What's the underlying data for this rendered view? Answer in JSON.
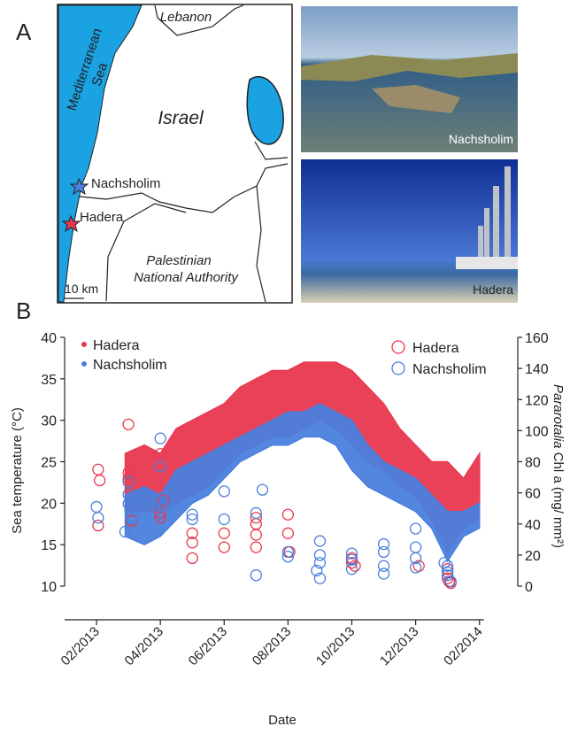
{
  "figure": {
    "panel_a": {
      "label": "A",
      "map": {
        "lebanon": "Lebanon",
        "sea_line1": "Mediterranean",
        "sea_line2": "Sea",
        "country": "Israel",
        "site1": "Nachsholim",
        "site2": "Hadera",
        "pa_line1": "Palestinian",
        "pa_line2": "National Authority",
        "scale": "10 km"
      },
      "photos": [
        "Nachsholim",
        "Hadera"
      ]
    },
    "panel_b": {
      "label": "B"
    }
  },
  "chart_data": {
    "type": "band-scatter",
    "xlabel": "Date",
    "ylabel": "Sea temperature (°C)",
    "y2label_italic": "Pararotalia",
    "y2label": "Chl a (mg/ mm²)",
    "xlim": [
      -1,
      13.2
    ],
    "xticks": [
      {
        "value": 0,
        "label": "02/2013"
      },
      {
        "value": 2,
        "label": "04/2013"
      },
      {
        "value": 4,
        "label": "06/2013"
      },
      {
        "value": 6,
        "label": "08/2013"
      },
      {
        "value": 8,
        "label": "10/2013"
      },
      {
        "value": 10,
        "label": "12/2013"
      },
      {
        "value": 12,
        "label": "02/2014"
      }
    ],
    "ylim": [
      10,
      40
    ],
    "yticks": [
      10,
      15,
      20,
      25,
      30,
      35,
      40
    ],
    "y2lim": [
      0,
      160
    ],
    "y2ticks": [
      0,
      20,
      40,
      60,
      80,
      100,
      120,
      140,
      160
    ],
    "series": [
      {
        "name": "Hadera",
        "color": "#e8384f",
        "kind": "band",
        "legend": "left",
        "x": [
          0.9,
          1.5,
          2,
          2.5,
          3,
          3.5,
          4,
          4.5,
          5,
          5.5,
          6,
          6.5,
          7,
          7.5,
          8,
          8.5,
          9,
          9.5,
          10,
          10.5,
          11,
          11.5,
          12
        ],
        "values": [
          26,
          27,
          26,
          29,
          30,
          31,
          32,
          34,
          35,
          36,
          36,
          37,
          37,
          37,
          36,
          34,
          32,
          29,
          27,
          25,
          25,
          23,
          26
        ],
        "low": [
          19,
          19,
          19,
          20,
          21,
          22,
          24,
          26,
          27,
          28,
          28,
          29,
          30,
          29,
          27,
          25,
          24,
          22,
          21,
          18,
          14,
          17,
          18
        ]
      },
      {
        "name": "Nachsholim",
        "color": "#4a7fdc",
        "kind": "band",
        "legend": "left",
        "x": [
          0.9,
          1.5,
          2,
          2.5,
          3,
          3.5,
          4,
          4.5,
          5,
          5.5,
          6,
          6.5,
          7,
          7.5,
          8,
          8.5,
          9,
          9.5,
          10,
          10.5,
          11,
          11.5,
          12
        ],
        "values": [
          21,
          22,
          21,
          24,
          25,
          26,
          27,
          28,
          29,
          30,
          31,
          31,
          32,
          31,
          30,
          27,
          25,
          24,
          23,
          21,
          19,
          19,
          20
        ],
        "low": [
          16,
          15,
          16,
          18,
          20,
          21,
          23,
          25,
          26,
          27,
          27,
          28,
          28,
          27,
          24,
          22,
          21,
          20,
          19,
          17,
          13,
          16,
          17
        ]
      },
      {
        "name": "Hadera",
        "color": "#e8384f",
        "kind": "scatter",
        "axis": "y2",
        "legend": "right",
        "x": [
          0.05,
          0.1,
          0.05,
          1.0,
          1.0,
          1.0,
          1.1,
          2.0,
          2.0,
          2.0,
          2.1,
          3.0,
          3.0,
          3.0,
          4.0,
          4.0,
          5.0,
          5.0,
          5.0,
          5.0,
          6.0,
          6.0,
          6.05,
          8.0,
          8.0,
          8.1,
          10.1,
          11.0,
          11.0,
          11.1,
          11.05
        ],
        "values": [
          75,
          68,
          39,
          104,
          73,
          69,
          42,
          85,
          47,
          44,
          55,
          34,
          28,
          18,
          34,
          25,
          44,
          40,
          33,
          25,
          46,
          34,
          22,
          18,
          15,
          13,
          13,
          11,
          5,
          2,
          3
        ]
      },
      {
        "name": "Nachsholim",
        "color": "#4a7fdc",
        "kind": "scatter",
        "axis": "y2",
        "legend": "right",
        "x": [
          0,
          0.05,
          0.9,
          1.0,
          1.0,
          1.1,
          1.0,
          2.0,
          2.0,
          2.0,
          2.1,
          3.0,
          3.0,
          4.0,
          4.0,
          5.0,
          5.2,
          5.0,
          6.0,
          6.0,
          7.0,
          7.0,
          7.0,
          6.9,
          7.0,
          8.0,
          8.0,
          8.0,
          9.0,
          9.0,
          9.0,
          9.0,
          10.0,
          10.0,
          10.0,
          10.0,
          11.0,
          11.0,
          11.1,
          10.9,
          11.0
        ],
        "values": [
          51,
          44,
          35,
          59,
          53,
          43,
          67,
          95,
          77,
          54,
          51,
          46,
          43,
          61,
          43,
          47,
          62,
          7,
          22,
          19,
          29,
          20,
          15,
          10,
          5,
          21,
          17,
          11,
          27,
          22,
          13,
          8,
          37,
          25,
          18,
          12,
          13,
          9,
          3,
          15,
          7
        ]
      }
    ]
  }
}
